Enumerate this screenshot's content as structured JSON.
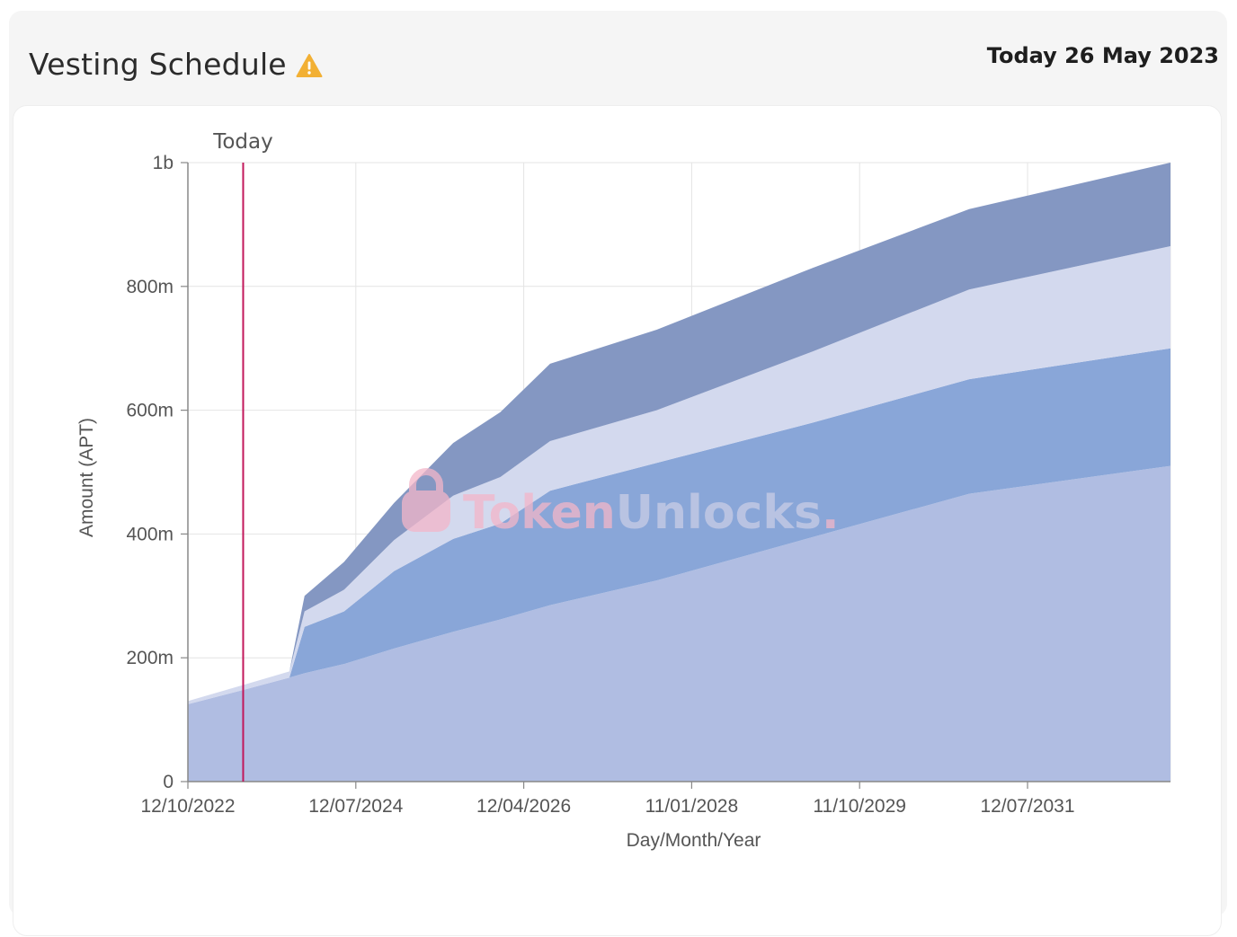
{
  "header": {
    "title": "Vesting Schedule",
    "today_label": "Today 26 May 2023",
    "warning_icon": "warning-icon"
  },
  "watermark": {
    "part1": "Token",
    "part2": "Unlocks",
    "dot": ".",
    "color1": "#f3b6c9",
    "color2": "#c9cde6",
    "icon": "lock-icon"
  },
  "colors": {
    "series_base": "#b0bde2",
    "series_mid": "#89a6d8",
    "series_light": "#d3d9ee",
    "series_top": "#8497c2",
    "today_line": "#c2185b",
    "grid": "#e4e4e4"
  },
  "chart_data": {
    "type": "area",
    "stacked": true,
    "xlabel": "Day/Month/Year",
    "ylabel": "Amount (APT)",
    "x_tick_labels": [
      "12/10/2022",
      "12/07/2024",
      "12/04/2026",
      "11/01/2028",
      "11/10/2029",
      "12/07/2031"
    ],
    "y_tick_labels": [
      "0",
      "200m",
      "400m",
      "600m",
      "800m",
      "1b"
    ],
    "ylim": [
      0,
      1000000000
    ],
    "xlim": [
      "2022-10-12",
      "2033-10-12"
    ],
    "grid": true,
    "today_marker": {
      "date": "2023-05-26",
      "label": "Today"
    },
    "x": [
      "2022-10-12",
      "2023-05-26",
      "2023-12-01",
      "2024-02-01",
      "2024-07-12",
      "2025-02-01",
      "2025-10-01",
      "2026-04-12",
      "2026-11-01",
      "2028-01-11",
      "2029-10-11",
      "2031-07-12",
      "2033-10-12"
    ],
    "series": [
      {
        "values": [
          125000000,
          148000000,
          168000000,
          175000000,
          190000000,
          215000000,
          242000000,
          262000000,
          285000000,
          325000000,
          395000000,
          465000000,
          510000000
        ]
      },
      {
        "values": [
          0,
          0,
          0,
          75000000,
          85000000,
          125000000,
          150000000,
          155000000,
          185000000,
          190000000,
          185000000,
          185000000,
          190000000
        ]
      },
      {
        "values": [
          5000000,
          8000000,
          10000000,
          25000000,
          35000000,
          50000000,
          70000000,
          75000000,
          80000000,
          85000000,
          115000000,
          145000000,
          165000000
        ]
      },
      {
        "values": [
          0,
          0,
          0,
          25000000,
          45000000,
          60000000,
          85000000,
          105000000,
          125000000,
          130000000,
          135000000,
          130000000,
          135000000
        ]
      }
    ]
  }
}
